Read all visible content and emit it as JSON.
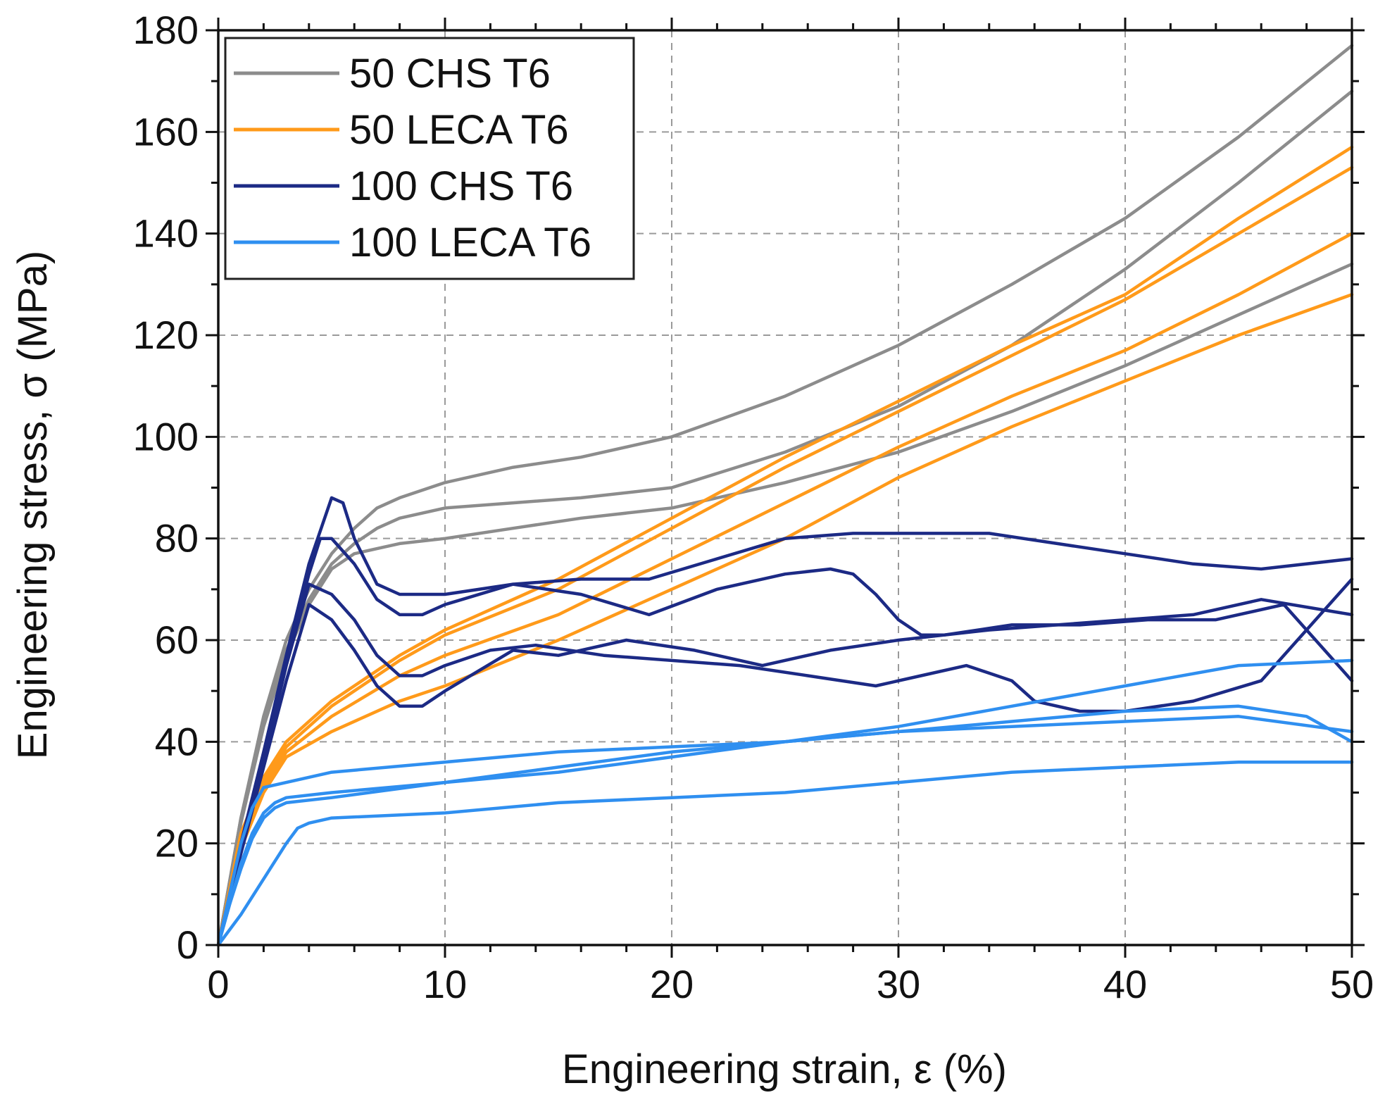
{
  "chart_data": {
    "type": "line",
    "title": "",
    "xlabel": "Engineering strain, ε (%)",
    "ylabel": "Engineering stress, σ (MPa)",
    "xlim": [
      0,
      50
    ],
    "ylim": [
      0,
      180
    ],
    "xticks": [
      0,
      10,
      20,
      30,
      40,
      50
    ],
    "yticks": [
      0,
      20,
      40,
      60,
      80,
      100,
      120,
      140,
      160,
      180
    ],
    "grid": true,
    "legend_position": "top-left",
    "legend": [
      {
        "label": "50 CHS T6",
        "color": "#8c8c8c"
      },
      {
        "label": "50 LECA T6",
        "color": "#ff9a1a"
      },
      {
        "label": "100 CHS T6",
        "color": "#1c2a85"
      },
      {
        "label": "100 LECA T6",
        "color": "#2f8ff0"
      }
    ],
    "series": [
      {
        "name": "50 CHS T6",
        "color": "#8c8c8c",
        "x": [
          0,
          1,
          2,
          3,
          4,
          5,
          6,
          7,
          8,
          10,
          13,
          16,
          20,
          25,
          30,
          35,
          40,
          45,
          50
        ],
        "y": [
          0,
          25,
          45,
          60,
          70,
          77,
          82,
          86,
          88,
          91,
          94,
          96,
          100,
          108,
          118,
          130,
          143,
          159,
          177
        ]
      },
      {
        "name": "50 CHS T6",
        "color": "#8c8c8c",
        "x": [
          0,
          1,
          2,
          3,
          4,
          5,
          6,
          7,
          8,
          10,
          13,
          16,
          20,
          25,
          30,
          35,
          40,
          45,
          50
        ],
        "y": [
          0,
          25,
          44,
          58,
          68,
          75,
          79,
          82,
          84,
          86,
          87,
          88,
          90,
          97,
          106,
          118,
          133,
          150,
          168
        ]
      },
      {
        "name": "50 CHS T6",
        "color": "#8c8c8c",
        "x": [
          0,
          1,
          2,
          3,
          4,
          5,
          6,
          7,
          8,
          10,
          13,
          16,
          20,
          25,
          30,
          35,
          40,
          45,
          50
        ],
        "y": [
          0,
          24,
          43,
          57,
          67,
          74,
          77,
          78,
          79,
          80,
          82,
          84,
          86,
          91,
          97,
          105,
          114,
          124,
          134
        ]
      },
      {
        "name": "50 LECA T6",
        "color": "#ff9a1a",
        "x": [
          0,
          1,
          2,
          3,
          5,
          8,
          10,
          15,
          20,
          25,
          30,
          35,
          40,
          45,
          50
        ],
        "y": [
          0,
          22,
          33,
          40,
          48,
          57,
          62,
          72,
          84,
          96,
          107,
          118,
          128,
          143,
          157
        ]
      },
      {
        "name": "50 LECA T6",
        "color": "#ff9a1a",
        "x": [
          0,
          1,
          2,
          3,
          5,
          8,
          10,
          15,
          20,
          25,
          30,
          35,
          40,
          45,
          50
        ],
        "y": [
          0,
          21,
          32,
          39,
          47,
          56,
          61,
          70,
          82,
          94,
          105,
          116,
          127,
          140,
          153
        ]
      },
      {
        "name": "50 LECA T6",
        "color": "#ff9a1a",
        "x": [
          0,
          1,
          2,
          3,
          5,
          8,
          10,
          15,
          20,
          25,
          30,
          35,
          40,
          45,
          50
        ],
        "y": [
          0,
          20,
          31,
          38,
          45,
          53,
          57,
          65,
          76,
          87,
          98,
          108,
          117,
          128,
          140
        ]
      },
      {
        "name": "50 LECA T6",
        "color": "#ff9a1a",
        "x": [
          0,
          1,
          2,
          3,
          5,
          8,
          10,
          15,
          20,
          25,
          30,
          35,
          40,
          45,
          50
        ],
        "y": [
          0,
          19,
          30,
          37,
          42,
          48,
          51,
          60,
          70,
          80,
          92,
          102,
          111,
          120,
          128
        ]
      },
      {
        "name": "100 CHS T6",
        "color": "#1c2a85",
        "x": [
          0,
          1,
          2,
          3,
          4,
          5,
          5.5,
          6,
          7,
          8,
          10,
          13,
          16,
          19,
          22,
          25,
          28,
          31,
          34,
          37,
          40,
          43,
          46,
          50
        ],
        "y": [
          0,
          20,
          38,
          57,
          75,
          88,
          87,
          80,
          71,
          69,
          69,
          71,
          72,
          72,
          76,
          80,
          81,
          81,
          81,
          79,
          77,
          75,
          74,
          76
        ]
      },
      {
        "name": "100 CHS T6",
        "color": "#1c2a85",
        "x": [
          0,
          1,
          2,
          3,
          4,
          4.5,
          5,
          6,
          7,
          8,
          9,
          10,
          13,
          16,
          19,
          22,
          25,
          27,
          28,
          29,
          30,
          31,
          32,
          34,
          37,
          40,
          43,
          46,
          50
        ],
        "y": [
          0,
          19,
          37,
          56,
          73,
          80,
          80,
          75,
          68,
          65,
          65,
          67,
          71,
          69,
          65,
          70,
          73,
          74,
          73,
          69,
          64,
          61,
          61,
          62,
          63,
          64,
          65,
          68,
          65
        ]
      },
      {
        "name": "100 CHS T6",
        "color": "#1c2a85",
        "x": [
          0,
          1,
          2,
          3,
          4,
          5,
          6,
          7,
          8,
          9,
          10,
          12,
          14,
          17,
          20,
          23,
          26,
          29,
          31,
          33,
          35,
          36,
          38,
          40,
          43,
          46,
          50
        ],
        "y": [
          0,
          19,
          36,
          55,
          71,
          69,
          64,
          57,
          53,
          53,
          55,
          58,
          59,
          57,
          56,
          55,
          53,
          51,
          53,
          55,
          52,
          48,
          46,
          46,
          48,
          52,
          72
        ]
      },
      {
        "name": "100 CHS T6",
        "color": "#1c2a85",
        "x": [
          0,
          1,
          2,
          3,
          4,
          5,
          6,
          7,
          8,
          9,
          10,
          13,
          15,
          18,
          21,
          24,
          27,
          30,
          32,
          35,
          38,
          41,
          44,
          47,
          50
        ],
        "y": [
          0,
          18,
          35,
          52,
          67,
          64,
          58,
          51,
          47,
          47,
          50,
          58,
          57,
          60,
          58,
          55,
          58,
          60,
          61,
          63,
          63,
          64,
          64,
          67,
          52
        ]
      },
      {
        "name": "100 LECA T6",
        "color": "#2f8ff0",
        "x": [
          0,
          0.5,
          1,
          1.5,
          2,
          3,
          5,
          10,
          15,
          20,
          25,
          30,
          35,
          40,
          45,
          48,
          50
        ],
        "y": [
          0,
          10,
          20,
          27,
          31,
          32,
          34,
          36,
          38,
          39,
          40,
          42,
          44,
          46,
          47,
          45,
          40
        ]
      },
      {
        "name": "100 LECA T6",
        "color": "#2f8ff0",
        "x": [
          0,
          0.5,
          1,
          1.5,
          2,
          2.5,
          3,
          5,
          10,
          15,
          20,
          25,
          30,
          35,
          40,
          45,
          50
        ],
        "y": [
          0,
          8,
          16,
          22,
          26,
          28,
          29,
          30,
          32,
          34,
          37,
          40,
          43,
          47,
          51,
          55,
          56
        ]
      },
      {
        "name": "100 LECA T6",
        "color": "#2f8ff0",
        "x": [
          0,
          0.5,
          1,
          1.5,
          2,
          2.5,
          3,
          5,
          10,
          15,
          20,
          25,
          30,
          35,
          40,
          45,
          50
        ],
        "y": [
          0,
          8,
          15,
          21,
          25,
          27,
          28,
          29,
          32,
          35,
          38,
          40,
          42,
          43,
          44,
          45,
          42
        ]
      },
      {
        "name": "100 LECA T6",
        "color": "#2f8ff0",
        "x": [
          0,
          1,
          2,
          3,
          3.5,
          4,
          5,
          10,
          15,
          20,
          25,
          30,
          35,
          40,
          45,
          50
        ],
        "y": [
          0,
          6,
          13,
          20,
          23,
          24,
          25,
          26,
          28,
          29,
          30,
          32,
          34,
          35,
          36,
          36
        ]
      }
    ]
  }
}
